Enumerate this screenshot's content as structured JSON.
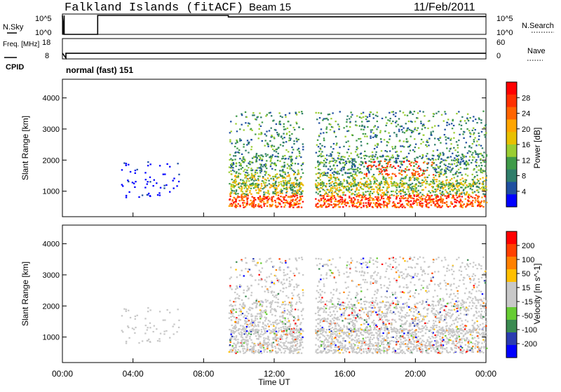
{
  "header": {
    "station": "Falkland Islands (fitACF)",
    "beam": "Beam 15",
    "date": "11/Feb/2011"
  },
  "colors": {
    "power_scale": [
      "#0000ff",
      "#1f4fa0",
      "#2f7d6a",
      "#3f9a48",
      "#9acd32",
      "#e8c000",
      "#ffa500",
      "#ff6400",
      "#ff3000",
      "#ff0000"
    ],
    "velocity_scale": [
      "#0000ff",
      "#2b3cb0",
      "#3a8a50",
      "#66cc33",
      "#c8c8c8",
      "#c8c8c8",
      "#ffbf00",
      "#ff8000",
      "#ff4000",
      "#ff0000"
    ]
  },
  "chart_data": [
    {
      "type": "line",
      "panel": "nsky-nsearch",
      "left_label": "N.Sky",
      "right_label": "N.Search",
      "left_ticks": [
        "10^5",
        "10^0"
      ],
      "right_ticks": [
        "10^5",
        "10^0"
      ],
      "series": [
        {
          "name": "N.Sky",
          "x": [
            0.0,
            0.05,
            0.1,
            0.1,
            2.0,
            2.0,
            9.4,
            9.4,
            24.0
          ],
          "y": [
            5,
            0,
            5,
            0,
            0,
            5,
            5,
            4.6,
            4.7
          ]
        }
      ]
    },
    {
      "type": "line",
      "panel": "freq-nave",
      "left_label": "Freq. [MHz]",
      "right_label": "Nave",
      "left_ticks": [
        "18",
        "8"
      ],
      "right_ticks": [
        "60",
        "0"
      ],
      "series": [
        {
          "name": "Freq.",
          "x": [
            0.0,
            0.2,
            0.2,
            2.0,
            2.0,
            24.0
          ],
          "y": [
            11,
            8.5,
            11,
            11,
            11,
            11
          ]
        }
      ]
    },
    {
      "type": "heatmap",
      "panel": "cpid",
      "label": "CPID",
      "text": "normal (fast) 151"
    },
    {
      "type": "heatmap",
      "panel": "power",
      "ylabel": "Slant Range [km]",
      "yticks": [
        1000,
        2000,
        3000,
        4000
      ],
      "ylim": [
        180,
        4600
      ],
      "xlim": [
        0,
        24
      ],
      "colorbar_label": "Power [dB]",
      "colorbar_ticks": [
        "28",
        "24",
        "20",
        "16",
        "12",
        "8",
        "4"
      ]
    },
    {
      "type": "heatmap",
      "panel": "velocity",
      "ylabel": "Slant Range [km]",
      "yticks": [
        1000,
        2000,
        3000,
        4000
      ],
      "ylim": [
        180,
        4600
      ],
      "xlim": [
        0,
        24
      ],
      "colorbar_label": "Velocity [m s^-1]",
      "colorbar_ticks": [
        "200",
        "100",
        "50",
        "15",
        "-15",
        "-50",
        "-100",
        "-200"
      ]
    }
  ],
  "x_axis": {
    "label": "Time UT",
    "ticks": [
      "00:00",
      "04:00",
      "08:00",
      "12:00",
      "16:00",
      "20:00",
      "00:00"
    ]
  }
}
